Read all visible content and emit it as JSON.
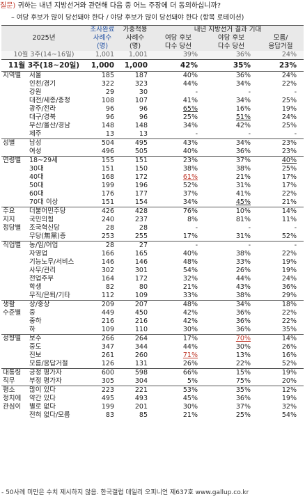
{
  "question": {
    "label": "질문)",
    "text": "귀하는 내년 지방선거와 관련해 다음 중 어느 주장에 더 동의하십니까?",
    "options": "– 여당 후보가 많이 당선돼야 한다 / 야당 후보가 많이 당선돼야 한다 (항목 로테이션)"
  },
  "header": {
    "year": "2025년",
    "col_sample": "조사완료",
    "col_sample2": "사례수",
    "col_sample3": "(명)",
    "col_weight": "가중적용",
    "col_weight2": "사례수",
    "col_weight3": "(명)",
    "group": "내년 지방선거 결과 기대",
    "col_a1": "여당 후보",
    "col_a2": "다수 당선",
    "col_b1": "야당 후보",
    "col_b2": "다수 당선",
    "col_c1": "모름/",
    "col_c2": "응답거절"
  },
  "prev": {
    "label": "10월 3주(14~16일)",
    "n1": "1,001",
    "n2": "1,001",
    "a": "39%",
    "b": "36%",
    "c": "24%"
  },
  "total": {
    "label": "11월 3주(18~20일)",
    "n1": "1,000",
    "n2": "1,000",
    "a": "42%",
    "b": "35%",
    "c": "23%"
  },
  "rows": [
    {
      "g": "지역별",
      "l": "서울",
      "n1": "185",
      "n2": "187",
      "a": "40%",
      "b": "36%",
      "c": "24%",
      "sep": "solid"
    },
    {
      "g": "",
      "l": "인천/경기",
      "n1": "322",
      "n2": "323",
      "a": "44%",
      "b": "34%",
      "c": "22%"
    },
    {
      "g": "",
      "l": "강원",
      "n1": "29",
      "n2": "30",
      "a": "-",
      "b": "-",
      "c": "-"
    },
    {
      "g": "",
      "l": "대전/세종/충청",
      "n1": "108",
      "n2": "107",
      "a": "41%",
      "b": "34%",
      "c": "25%"
    },
    {
      "g": "",
      "l": "광주/전라",
      "n1": "96",
      "n2": "96",
      "a": "65%",
      "b": "16%",
      "c": "19%",
      "ua": true
    },
    {
      "g": "",
      "l": "대구/경북",
      "n1": "96",
      "n2": "96",
      "a": "25%",
      "b": "51%",
      "c": "24%",
      "ub": true
    },
    {
      "g": "",
      "l": "부산/울산/경남",
      "n1": "148",
      "n2": "148",
      "a": "34%",
      "b": "42%",
      "c": "25%"
    },
    {
      "g": "",
      "l": "제주",
      "n1": "13",
      "n2": "13",
      "a": "-",
      "b": "-",
      "c": "-"
    },
    {
      "g": "성별",
      "l": "남성",
      "n1": "504",
      "n2": "495",
      "a": "43%",
      "b": "34%",
      "c": "23%",
      "sep": "solid"
    },
    {
      "g": "",
      "l": "여성",
      "n1": "496",
      "n2": "505",
      "a": "40%",
      "b": "36%",
      "c": "23%"
    },
    {
      "g": "연령별",
      "l": "18~29세",
      "n1": "155",
      "n2": "151",
      "a": "23%",
      "b": "37%",
      "c": "40%",
      "sep": "solid",
      "uc": true
    },
    {
      "g": "",
      "l": "30대",
      "n1": "151",
      "n2": "150",
      "a": "38%",
      "b": "38%",
      "c": "25%"
    },
    {
      "g": "",
      "l": "40대",
      "n1": "168",
      "n2": "172",
      "a": "61%",
      "b": "21%",
      "c": "17%",
      "ua": true,
      "ra": true
    },
    {
      "g": "",
      "l": "50대",
      "n1": "199",
      "n2": "196",
      "a": "52%",
      "b": "31%",
      "c": "17%"
    },
    {
      "g": "",
      "l": "60대",
      "n1": "176",
      "n2": "177",
      "a": "37%",
      "b": "41%",
      "c": "22%"
    },
    {
      "g": "",
      "l": "70대 이상",
      "n1": "151",
      "n2": "154",
      "a": "34%",
      "b": "45%",
      "c": "21%",
      "ub": true
    },
    {
      "g": "주요",
      "l": "더불어민주당",
      "n1": "426",
      "n2": "428",
      "a": "76%",
      "b": "10%",
      "c": "14%",
      "sep": "solid"
    },
    {
      "g": "지지",
      "l": "국민의힘",
      "n1": "240",
      "n2": "237",
      "a": "8%",
      "b": "81%",
      "c": "11%"
    },
    {
      "g": "정당별",
      "l": "조국혁신당",
      "n1": "28",
      "n2": "28",
      "a": "-",
      "b": "-",
      "c": "-"
    },
    {
      "g": "",
      "l": "무당(無黨)층",
      "n1": "253",
      "n2": "255",
      "a": "17%",
      "b": "31%",
      "c": "52%"
    },
    {
      "g": "직업별",
      "l": "농/임/어업",
      "n1": "28",
      "n2": "27",
      "a": "-",
      "b": "-",
      "c": "-",
      "sep": "solid"
    },
    {
      "g": "",
      "l": "자영업",
      "n1": "166",
      "n2": "165",
      "a": "40%",
      "b": "38%",
      "c": "22%"
    },
    {
      "g": "",
      "l": "기능노무/서비스",
      "n1": "146",
      "n2": "146",
      "a": "48%",
      "b": "33%",
      "c": "19%"
    },
    {
      "g": "",
      "l": "사무/관리",
      "n1": "302",
      "n2": "301",
      "a": "54%",
      "b": "26%",
      "c": "19%"
    },
    {
      "g": "",
      "l": "전업주부",
      "n1": "164",
      "n2": "172",
      "a": "32%",
      "b": "44%",
      "c": "24%"
    },
    {
      "g": "",
      "l": "학생",
      "n1": "82",
      "n2": "80",
      "a": "21%",
      "b": "43%",
      "c": "36%"
    },
    {
      "g": "",
      "l": "무직/은퇴/기타",
      "n1": "112",
      "n2": "109",
      "a": "33%",
      "b": "38%",
      "c": "29%"
    },
    {
      "g": "생활",
      "l": "상/중상",
      "n1": "209",
      "n2": "207",
      "a": "48%",
      "b": "34%",
      "c": "18%",
      "sep": "solid"
    },
    {
      "g": "수준별",
      "l": "중",
      "n1": "449",
      "n2": "450",
      "a": "42%",
      "b": "36%",
      "c": "22%"
    },
    {
      "g": "",
      "l": "중하",
      "n1": "216",
      "n2": "216",
      "a": "42%",
      "b": "36%",
      "c": "22%"
    },
    {
      "g": "",
      "l": "하",
      "n1": "109",
      "n2": "110",
      "a": "30%",
      "b": "36%",
      "c": "35%"
    },
    {
      "g": "성향별",
      "l": "보수",
      "n1": "266",
      "n2": "264",
      "a": "17%",
      "b": "70%",
      "c": "14%",
      "sep": "solid",
      "ub": true,
      "rb": true
    },
    {
      "g": "",
      "l": "중도",
      "n1": "347",
      "n2": "344",
      "a": "44%",
      "b": "30%",
      "c": "26%"
    },
    {
      "g": "",
      "l": "진보",
      "n1": "261",
      "n2": "260",
      "a": "71%",
      "b": "13%",
      "c": "16%",
      "ua": true,
      "ra": true
    },
    {
      "g": "",
      "l": "모름/응답거절",
      "n1": "126",
      "n2": "131",
      "a": "26%",
      "b": "22%",
      "c": "52%"
    },
    {
      "g": "대통령",
      "l": "긍정 평가자",
      "n1": "600",
      "n2": "598",
      "a": "66%",
      "b": "15%",
      "c": "19%",
      "sep": "solid"
    },
    {
      "g": "직무",
      "l": "부정 평가자",
      "n1": "305",
      "n2": "304",
      "a": "5%",
      "b": "75%",
      "c": "20%"
    },
    {
      "g": "평소",
      "l": "많이 있다",
      "n1": "223",
      "n2": "221",
      "a": "53%",
      "b": "35%",
      "c": "12%",
      "sep": "solid"
    },
    {
      "g": "정치에",
      "l": "약간 있다",
      "n1": "495",
      "n2": "493",
      "a": "45%",
      "b": "36%",
      "c": "19%"
    },
    {
      "g": "관심이",
      "l": "별로 없다",
      "n1": "199",
      "n2": "201",
      "a": "30%",
      "b": "37%",
      "c": "32%"
    },
    {
      "g": "",
      "l": "전혀 없다/모름",
      "n1": "83",
      "n2": "85",
      "a": "21%",
      "b": "25%",
      "c": "54%"
    }
  ],
  "footnote": "- 50사례 미만은 수치 제시하지 않음. 한국갤럽 데일리 오피니언 제637호 www.gallup.co.kr"
}
